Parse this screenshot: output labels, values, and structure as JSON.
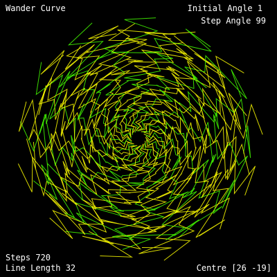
{
  "title": "Wander Curve",
  "initial_angle": "Initial Angle 1",
  "step_angle": "Step Angle 99",
  "steps": "Steps 720",
  "line_length": "Line Length 32",
  "centre": "Centre [26 -19]",
  "colors": {
    "background": "#000000",
    "text": "#ffffff",
    "curve_yellow": "#ffff00",
    "curve_green": "#44ff00"
  }
}
